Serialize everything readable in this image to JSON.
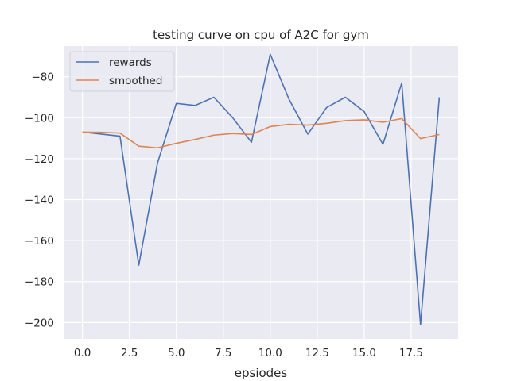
{
  "chart_data": {
    "type": "line",
    "title": "testing curve on cpu of A2C for gym",
    "xlabel": "epsiodes",
    "ylabel": "",
    "xlim": [
      -1,
      20
    ],
    "ylim": [
      -208,
      -65
    ],
    "grid": true,
    "legend_position": "upper-left",
    "x_ticks": [
      "0.0",
      "2.5",
      "5.0",
      "7.5",
      "10.0",
      "12.5",
      "15.0",
      "17.5"
    ],
    "y_ticks": [
      "−80",
      "−100",
      "−120",
      "−140",
      "−160",
      "−180",
      "−200"
    ],
    "x": [
      0,
      1,
      2,
      3,
      4,
      5,
      6,
      7,
      8,
      9,
      10,
      11,
      12,
      13,
      14,
      15,
      16,
      17,
      18,
      19
    ],
    "series": [
      {
        "name": "rewards",
        "color": "#4c72b0",
        "values": [
          -107,
          -108,
          -109,
          -172,
          -122,
          -93,
          -94,
          -90,
          -100,
          -112,
          -69,
          -91,
          -108,
          -95,
          -90,
          -97,
          -113,
          -83,
          -201,
          -90
        ]
      },
      {
        "name": "smoothed",
        "color": "#dd8452",
        "values": [
          -107,
          -107.1,
          -107.5,
          -113.9,
          -114.7,
          -112.5,
          -110.6,
          -108.5,
          -107.7,
          -108.2,
          -104.3,
          -103.2,
          -103.6,
          -102.7,
          -101.4,
          -101.0,
          -102.2,
          -100.4,
          -110.2,
          -108.2
        ]
      }
    ]
  }
}
